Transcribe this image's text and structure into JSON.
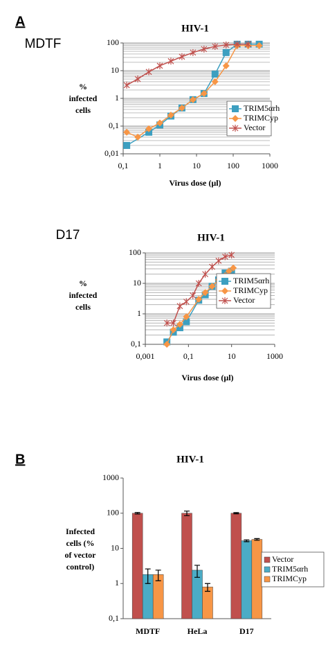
{
  "figure_labels": [
    "A",
    "B"
  ],
  "chart_data": [
    {
      "type": "line",
      "label": "MDTF",
      "title": "HIV-1",
      "xlabel": "Virus dose (µl)",
      "ylabel": [
        "%",
        "infected",
        "cells"
      ],
      "xscale": "log",
      "yscale": "log",
      "grid": true,
      "minor_grid": true,
      "legend": "right",
      "xlim": [
        0.1,
        1000
      ],
      "xticks": [
        {
          "value": 0.1,
          "label": "0,1"
        },
        1,
        10,
        100,
        1000
      ],
      "ylim": [
        0.01,
        100
      ],
      "yticks": [
        {
          "value": 0.01,
          "label": "0,01"
        },
        {
          "value": 0.1,
          "label": "0,1"
        },
        1,
        10,
        100
      ],
      "series": [
        {
          "name": "TRIM5αrh",
          "color": "#3d9fc0",
          "marker": "square",
          "x": [
            0.125,
            0.5,
            1,
            2,
            4,
            8,
            16,
            32,
            64,
            128,
            256,
            512
          ],
          "values": [
            0.02,
            0.06,
            0.11,
            0.23,
            0.45,
            0.9,
            1.5,
            7.5,
            45,
            90,
            90,
            90
          ]
        },
        {
          "name": "TRIMCyp",
          "color": "#f79646",
          "marker": "diamond",
          "x": [
            0.125,
            0.25,
            0.5,
            1,
            2,
            4,
            8,
            16,
            32,
            64,
            128,
            256,
            512
          ],
          "values": [
            0.06,
            0.04,
            0.08,
            0.13,
            0.25,
            0.45,
            0.9,
            1.5,
            4,
            15,
            80,
            80,
            80
          ]
        },
        {
          "name": "Vector",
          "color": "#c0504d",
          "marker": "star",
          "x": [
            0.125,
            0.25,
            0.5,
            1,
            2,
            4,
            8,
            16,
            32,
            64,
            128,
            256
          ],
          "values": [
            3,
            5,
            9,
            15,
            22,
            32,
            45,
            60,
            75,
            85,
            90,
            90
          ]
        }
      ]
    },
    {
      "type": "line",
      "label": "D17",
      "title": "HIV-1",
      "xlabel": "Virus dose (µl)",
      "ylabel": [
        "%",
        "infected",
        "cells"
      ],
      "xscale": "log",
      "yscale": "log",
      "grid": true,
      "minor_grid": true,
      "legend": "right",
      "xlim": [
        0.001,
        1000
      ],
      "xticks": [
        {
          "value": 0.001,
          "label": "0,001"
        },
        {
          "value": 0.1,
          "label": "0,1"
        },
        10,
        1000
      ],
      "ylim": [
        0.1,
        100
      ],
      "yticks": [
        {
          "value": 0.1,
          "label": "0,1"
        },
        1,
        10,
        100
      ],
      "series": [
        {
          "name": "TRIM5αrh",
          "color": "#3d9fc0",
          "marker": "square",
          "x": [
            0.01,
            0.02,
            0.04,
            0.08,
            0.3,
            0.6,
            1.25,
            2.5,
            5,
            10
          ],
          "values": [
            0.12,
            0.25,
            0.35,
            0.55,
            2.8,
            4.2,
            8,
            13,
            22,
            25
          ]
        },
        {
          "name": "TRIMCyp",
          "color": "#f79646",
          "marker": "diamond",
          "x": [
            0.01,
            0.02,
            0.04,
            0.08,
            0.3,
            0.6,
            1.25,
            2.5,
            5,
            7.5,
            12
          ],
          "values": [
            0.1,
            0.3,
            0.45,
            0.8,
            3,
            5,
            8,
            13,
            18,
            25,
            32
          ]
        },
        {
          "name": "Vector",
          "color": "#c0504d",
          "marker": "star",
          "x": [
            0.01,
            0.02,
            0.04,
            0.08,
            0.16,
            0.3,
            0.6,
            1.25,
            2.5,
            5,
            10
          ],
          "values": [
            0.5,
            0.5,
            1.8,
            2.5,
            4,
            10,
            20,
            35,
            55,
            75,
            85
          ]
        }
      ]
    },
    {
      "type": "bar",
      "title": "HIV-1",
      "ylabel": [
        "Infected",
        "cells (%",
        "of vector",
        "control)"
      ],
      "yscale": "log",
      "grid": false,
      "legend": "right",
      "ylim": [
        0.1,
        1000
      ],
      "yticks": [
        {
          "value": 0.1,
          "label": "0,1"
        },
        1,
        10,
        100,
        1000
      ],
      "categories": [
        "MDTF",
        "HeLa",
        "D17"
      ],
      "series": [
        {
          "name": "Vector",
          "color": "#c0504d",
          "values": [
            100,
            100,
            100
          ],
          "errors": [
            5,
            15,
            4
          ]
        },
        {
          "name": "TRIM5αrh",
          "color": "#4bacc6",
          "values": [
            1.8,
            2.4,
            16.5
          ],
          "errors": [
            0.8,
            0.9,
            1
          ]
        },
        {
          "name": "TRIMCyp",
          "color": "#f79646",
          "values": [
            1.8,
            0.8,
            18
          ],
          "errors": [
            0.6,
            0.2,
            1
          ]
        }
      ]
    }
  ]
}
